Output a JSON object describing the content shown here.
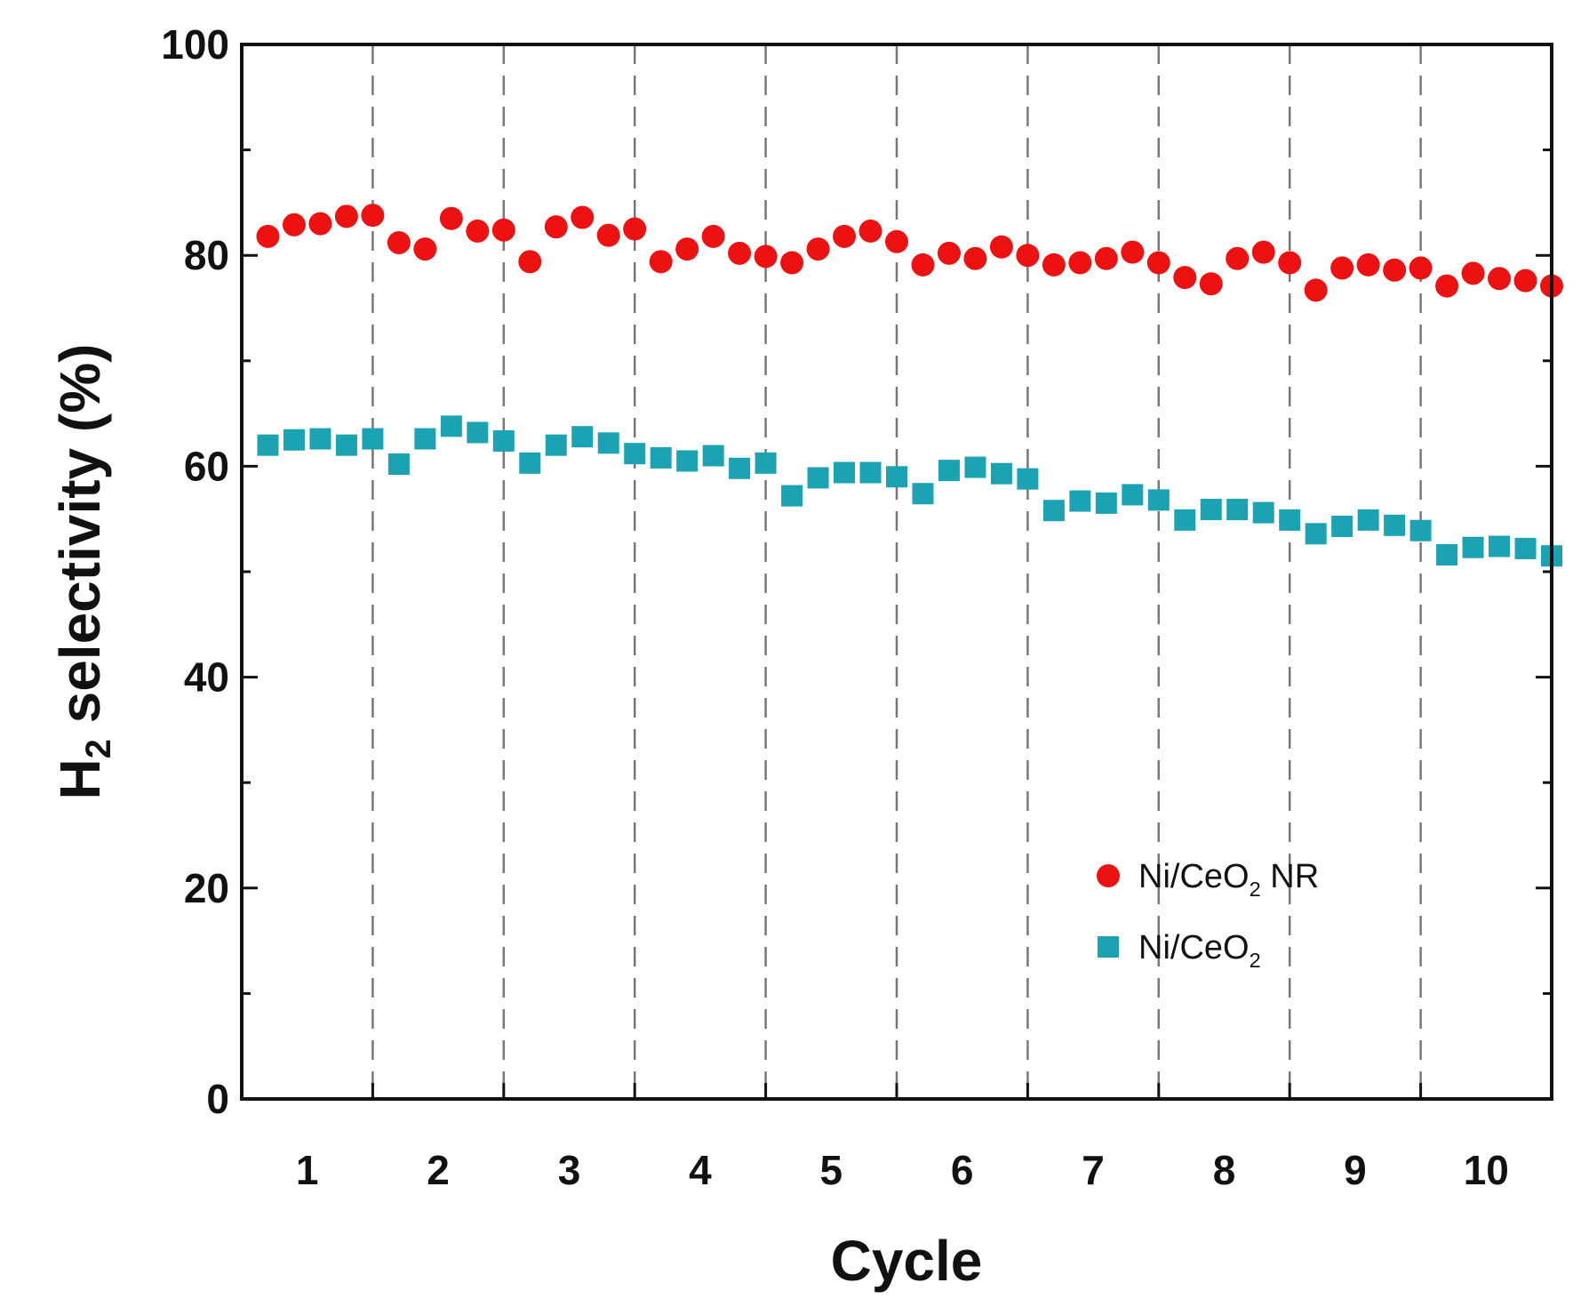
{
  "chart_data": {
    "type": "scatter",
    "xlabel": "Cycle",
    "ylabel": {
      "main": "H",
      "sub": "2",
      "rest": " selectivity (%)"
    },
    "ylim": [
      0,
      100
    ],
    "yticks": [
      0,
      20,
      40,
      60,
      80,
      100
    ],
    "xlim": [
      0,
      10
    ],
    "cycle_labels": [
      "1",
      "2",
      "3",
      "4",
      "5",
      "6",
      "7",
      "8",
      "9",
      "10"
    ],
    "cycle_boundaries": [
      1,
      2,
      3,
      4,
      5,
      6,
      7,
      8,
      9
    ],
    "series": [
      {
        "name": "Ni/CeO2 NR",
        "label": {
          "main": "Ni/CeO",
          "sub": "2",
          "rest": " NR"
        },
        "marker": "circle",
        "color": "#ee1111",
        "points": [
          [
            0.2,
            81.8
          ],
          [
            0.4,
            82.9
          ],
          [
            0.6,
            83.0
          ],
          [
            0.8,
            83.7
          ],
          [
            1.0,
            83.8
          ],
          [
            1.2,
            81.2
          ],
          [
            1.4,
            80.6
          ],
          [
            1.6,
            83.5
          ],
          [
            1.8,
            82.3
          ],
          [
            2.0,
            82.4
          ],
          [
            2.2,
            79.4
          ],
          [
            2.4,
            82.7
          ],
          [
            2.6,
            83.6
          ],
          [
            2.8,
            81.9
          ],
          [
            3.0,
            82.5
          ],
          [
            3.2,
            79.4
          ],
          [
            3.4,
            80.6
          ],
          [
            3.6,
            81.8
          ],
          [
            3.8,
            80.2
          ],
          [
            4.0,
            79.9
          ],
          [
            4.2,
            79.3
          ],
          [
            4.4,
            80.6
          ],
          [
            4.6,
            81.8
          ],
          [
            4.8,
            82.3
          ],
          [
            5.0,
            81.3
          ],
          [
            5.2,
            79.1
          ],
          [
            5.4,
            80.2
          ],
          [
            5.6,
            79.7
          ],
          [
            5.8,
            80.8
          ],
          [
            6.0,
            80.0
          ],
          [
            6.2,
            79.1
          ],
          [
            6.4,
            79.3
          ],
          [
            6.6,
            79.7
          ],
          [
            6.8,
            80.3
          ],
          [
            7.0,
            79.3
          ],
          [
            7.2,
            77.9
          ],
          [
            7.4,
            77.3
          ],
          [
            7.6,
            79.7
          ],
          [
            7.8,
            80.3
          ],
          [
            8.0,
            79.3
          ],
          [
            8.2,
            76.7
          ],
          [
            8.4,
            78.8
          ],
          [
            8.6,
            79.1
          ],
          [
            8.8,
            78.6
          ],
          [
            9.0,
            78.8
          ],
          [
            9.2,
            77.1
          ],
          [
            9.4,
            78.3
          ],
          [
            9.6,
            77.8
          ],
          [
            9.8,
            77.6
          ],
          [
            10.0,
            77.1
          ]
        ]
      },
      {
        "name": "Ni/CeO2",
        "label": {
          "main": "Ni/CeO",
          "sub": "2",
          "rest": ""
        },
        "marker": "square",
        "color": "#1ba3b4",
        "points": [
          [
            0.2,
            62.0
          ],
          [
            0.4,
            62.5
          ],
          [
            0.6,
            62.6
          ],
          [
            0.8,
            62.0
          ],
          [
            1.0,
            62.6
          ],
          [
            1.2,
            60.2
          ],
          [
            1.4,
            62.6
          ],
          [
            1.6,
            63.8
          ],
          [
            1.8,
            63.2
          ],
          [
            2.0,
            62.4
          ],
          [
            2.2,
            60.3
          ],
          [
            2.4,
            62.0
          ],
          [
            2.6,
            62.8
          ],
          [
            2.8,
            62.2
          ],
          [
            3.0,
            61.2
          ],
          [
            3.2,
            60.8
          ],
          [
            3.4,
            60.5
          ],
          [
            3.6,
            61.0
          ],
          [
            3.8,
            59.8
          ],
          [
            4.0,
            60.3
          ],
          [
            4.2,
            57.2
          ],
          [
            4.4,
            58.9
          ],
          [
            4.6,
            59.4
          ],
          [
            4.8,
            59.4
          ],
          [
            5.0,
            59.0
          ],
          [
            5.2,
            57.4
          ],
          [
            5.4,
            59.6
          ],
          [
            5.6,
            59.9
          ],
          [
            5.8,
            59.3
          ],
          [
            6.0,
            58.8
          ],
          [
            6.2,
            55.8
          ],
          [
            6.4,
            56.7
          ],
          [
            6.6,
            56.5
          ],
          [
            6.8,
            57.3
          ],
          [
            7.0,
            56.8
          ],
          [
            7.2,
            54.9
          ],
          [
            7.4,
            55.9
          ],
          [
            7.6,
            55.9
          ],
          [
            7.8,
            55.6
          ],
          [
            8.0,
            54.9
          ],
          [
            8.2,
            53.6
          ],
          [
            8.4,
            54.3
          ],
          [
            8.6,
            54.9
          ],
          [
            8.8,
            54.4
          ],
          [
            9.0,
            53.9
          ],
          [
            9.2,
            51.6
          ],
          [
            9.4,
            52.3
          ],
          [
            9.6,
            52.4
          ],
          [
            9.8,
            52.2
          ],
          [
            10.0,
            51.5
          ]
        ]
      }
    ]
  }
}
